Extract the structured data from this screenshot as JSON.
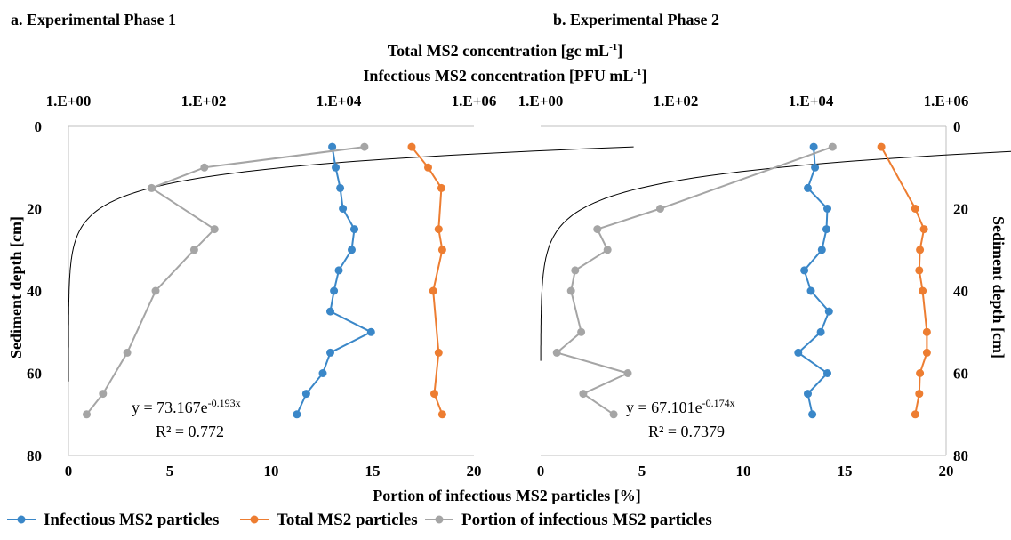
{
  "figure": {
    "top_axis_title_line1": "Total MS2 concentration [gc mL",
    "top_axis_title_line1_sup": "-1",
    "top_axis_title_line1_end": "]",
    "top_axis_title_line2": "Infectious MS2 concentration [PFU mL",
    "top_axis_title_line2_sup": "-1",
    "top_axis_title_line2_end": "]",
    "bottom_axis_title": "Portion of infectious MS2 particles [%]",
    "left_axis_title": "Sediment depth [cm]",
    "right_axis_title": "Sediment depth [cm]"
  },
  "legend": [
    {
      "label": "Infectious MS2 particles",
      "color": "#3a87c8"
    },
    {
      "label": "Total MS2 particles",
      "color": "#ed7d31"
    },
    {
      "label": "Portion of infectious MS2 particles",
      "color": "#a5a5a5"
    }
  ],
  "chart_data": [
    {
      "type": "line",
      "panel_title": "a. Experimental Phase 1",
      "y_axis": {
        "label": "Sediment depth [cm]",
        "range": [
          0,
          80
        ],
        "ticks": [
          "0",
          "20",
          "40",
          "60",
          "80"
        ],
        "reversed": true
      },
      "x_bottom": {
        "label": "Portion of infectious MS2 particles [%]",
        "range": [
          0,
          20
        ],
        "ticks": [
          "0",
          "5",
          "10",
          "15",
          "20"
        ]
      },
      "x_top": {
        "label": "Total MS2 concentration [gc mL-1] / Infectious MS2 concentration [PFU mL-1]",
        "scale": "log",
        "range": [
          1,
          1000000
        ],
        "ticks": [
          "1.E+00",
          "1.E+02",
          "1.E+04",
          "1.E+06"
        ]
      },
      "series": [
        {
          "name": "Infectious MS2 particles",
          "axis": "top",
          "color": "#3a87c8",
          "points": [
            [
              8000,
              5
            ],
            [
              9000,
              10
            ],
            [
              10500,
              15
            ],
            [
              11500,
              20
            ],
            [
              17000,
              25
            ],
            [
              15500,
              30
            ],
            [
              10000,
              35
            ],
            [
              8500,
              40
            ],
            [
              7500,
              45
            ],
            [
              30000,
              50
            ],
            [
              7500,
              55
            ],
            [
              5800,
              60
            ],
            [
              3300,
              65
            ],
            [
              2400,
              70
            ]
          ]
        },
        {
          "name": "Total MS2 particles",
          "axis": "top",
          "color": "#ed7d31",
          "points": [
            [
              120000,
              5
            ],
            [
              210000,
              10
            ],
            [
              330000,
              15
            ],
            [
              300000,
              25
            ],
            [
              340000,
              30
            ],
            [
              250000,
              40
            ],
            [
              300000,
              55
            ],
            [
              260000,
              65
            ],
            [
              340000,
              70
            ]
          ]
        },
        {
          "name": "Portion of infectious MS2 particles",
          "axis": "bottom",
          "color": "#a5a5a5",
          "points": [
            [
              14.6,
              5
            ],
            [
              6.7,
              10
            ],
            [
              4.1,
              15
            ],
            [
              7.2,
              25
            ],
            [
              6.2,
              30
            ],
            [
              4.3,
              40
            ],
            [
              2.9,
              55
            ],
            [
              1.7,
              65
            ],
            [
              0.9,
              70
            ]
          ]
        }
      ],
      "trendline": {
        "equation": "y = 73.167e",
        "exponent": "-0.193x",
        "r2": "R² = 0.772",
        "a": 73.167,
        "b": -0.193,
        "depth_range": [
          5,
          62
        ]
      }
    },
    {
      "type": "line",
      "panel_title": "b. Experimental Phase 2",
      "y_axis": {
        "label": "Sediment depth [cm]",
        "range": [
          0,
          80
        ],
        "ticks": [
          "0",
          "20",
          "40",
          "60",
          "80"
        ],
        "reversed": true
      },
      "x_bottom": {
        "label": "Portion of infectious MS2 particles [%]",
        "range": [
          0,
          20
        ],
        "ticks": [
          "0",
          "5",
          "10",
          "15",
          "20"
        ]
      },
      "x_top": {
        "label": "Total MS2 concentration [gc mL-1] / Infectious MS2 concentration [PFU mL-1]",
        "scale": "log",
        "range": [
          1,
          1000000
        ],
        "ticks": [
          "1.E+00",
          "1.E+02",
          "1.E+04",
          "1.E+06"
        ]
      },
      "series": [
        {
          "name": "Infectious MS2 particles",
          "axis": "top",
          "color": "#3a87c8",
          "points": [
            [
              11000,
              5
            ],
            [
              11500,
              10
            ],
            [
              9000,
              15
            ],
            [
              17500,
              20
            ],
            [
              17000,
              25
            ],
            [
              14500,
              30
            ],
            [
              8000,
              35
            ],
            [
              10000,
              40
            ],
            [
              18500,
              45
            ],
            [
              14000,
              50
            ],
            [
              6500,
              55
            ],
            [
              17500,
              60
            ],
            [
              9000,
              65
            ],
            [
              10500,
              70
            ]
          ]
        },
        {
          "name": "Total MS2 particles",
          "axis": "top",
          "color": "#ed7d31",
          "points": [
            [
              110000,
              5
            ],
            [
              350000,
              20
            ],
            [
              470000,
              25
            ],
            [
              410000,
              30
            ],
            [
              400000,
              35
            ],
            [
              450000,
              40
            ],
            [
              520000,
              50
            ],
            [
              520000,
              55
            ],
            [
              410000,
              60
            ],
            [
              400000,
              65
            ],
            [
              350000,
              70
            ]
          ]
        },
        {
          "name": "Portion of infectious MS2 particles",
          "axis": "bottom",
          "color": "#a5a5a5",
          "points": [
            [
              14.4,
              5
            ],
            [
              5.9,
              20
            ],
            [
              2.8,
              25
            ],
            [
              3.3,
              30
            ],
            [
              1.7,
              35
            ],
            [
              1.5,
              40
            ],
            [
              2.0,
              50
            ],
            [
              0.8,
              55
            ],
            [
              4.3,
              60
            ],
            [
              2.1,
              65
            ],
            [
              3.6,
              70
            ]
          ]
        }
      ],
      "trendline": {
        "equation": "y = 67.101e",
        "exponent": "-0.174x",
        "r2": "R² = 0.7379",
        "a": 67.101,
        "b": -0.174,
        "depth_range": [
          5,
          57
        ]
      }
    }
  ]
}
